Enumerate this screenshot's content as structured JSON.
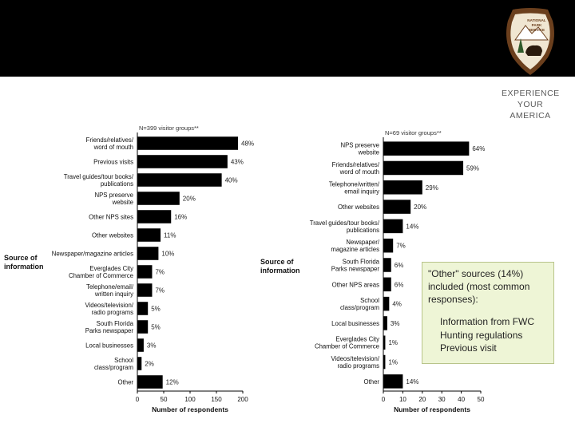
{
  "slide": {
    "tagline": [
      "EXPERIENCE",
      "YOUR",
      "AMERICA"
    ],
    "logo_text": [
      "NATIONAL",
      "PARK",
      "SERVICE"
    ],
    "colors": {
      "header": "#000000",
      "bar": "#000000",
      "callout_bg": "#eef5d6",
      "tagline": "#5a5a5a"
    }
  },
  "callout": {
    "intro": "\"Other\" sources (14%) included (most common responses):",
    "items": [
      "Information from FWC",
      "Hunting regulations",
      "Previous visit"
    ]
  },
  "chart_data": [
    {
      "type": "bar",
      "orientation": "horizontal",
      "annotation": "N=399 visitor groups**",
      "ylabel": "Source of information",
      "xlabel": "Number of respondents",
      "xlim": [
        0,
        200
      ],
      "xticks": [
        "0",
        "50",
        "100",
        "150",
        "200"
      ],
      "categories": [
        "Friends/relatives/ word of mouth",
        "Previous visits",
        "Travel guides/tour books/ publications",
        "NPS preserve website",
        "Other NPS sites",
        "Other websites",
        "Newspaper/magazine articles",
        "Everglades City Chamber of Commerce",
        "Telephone/email/ written inquiry",
        "Videos/television/ radio programs",
        "South Florida Parks newspaper",
        "Local businesses",
        "School class/program",
        "Other"
      ],
      "values": [
        191,
        171,
        160,
        80,
        64,
        44,
        40,
        28,
        28,
        20,
        20,
        12,
        8,
        48
      ],
      "labels": [
        "48%",
        "43%",
        "40%",
        "20%",
        "16%",
        "11%",
        "10%",
        "7%",
        "7%",
        "5%",
        "5%",
        "3%",
        "2%",
        "12%"
      ]
    },
    {
      "type": "bar",
      "orientation": "horizontal",
      "annotation": "N=69 visitor groups**",
      "ylabel": "Source of information",
      "xlabel": "Number of respondents",
      "xlim": [
        0,
        50
      ],
      "xticks": [
        "0",
        "10",
        "20",
        "30",
        "40",
        "50"
      ],
      "categories": [
        "NPS preserve website",
        "Friends/relatives/ word of mouth",
        "Telephone/written/ email inquiry",
        "Other websites",
        "Travel guides/tour books/ publications",
        "Newspaper/ magazine articles",
        "South Florida Parks newspaper",
        "Other NPS areas",
        "School class/program",
        "Local businesses",
        "Everglades City Chamber of Commerce",
        "Videos/television/ radio programs",
        "Other"
      ],
      "values": [
        44,
        41,
        20,
        14,
        10,
        5,
        4,
        4,
        3,
        2,
        1,
        1,
        10
      ],
      "labels": [
        "64%",
        "59%",
        "29%",
        "20%",
        "14%",
        "7%",
        "6%",
        "6%",
        "4%",
        "3%",
        "1%",
        "1%",
        "14%"
      ]
    }
  ]
}
